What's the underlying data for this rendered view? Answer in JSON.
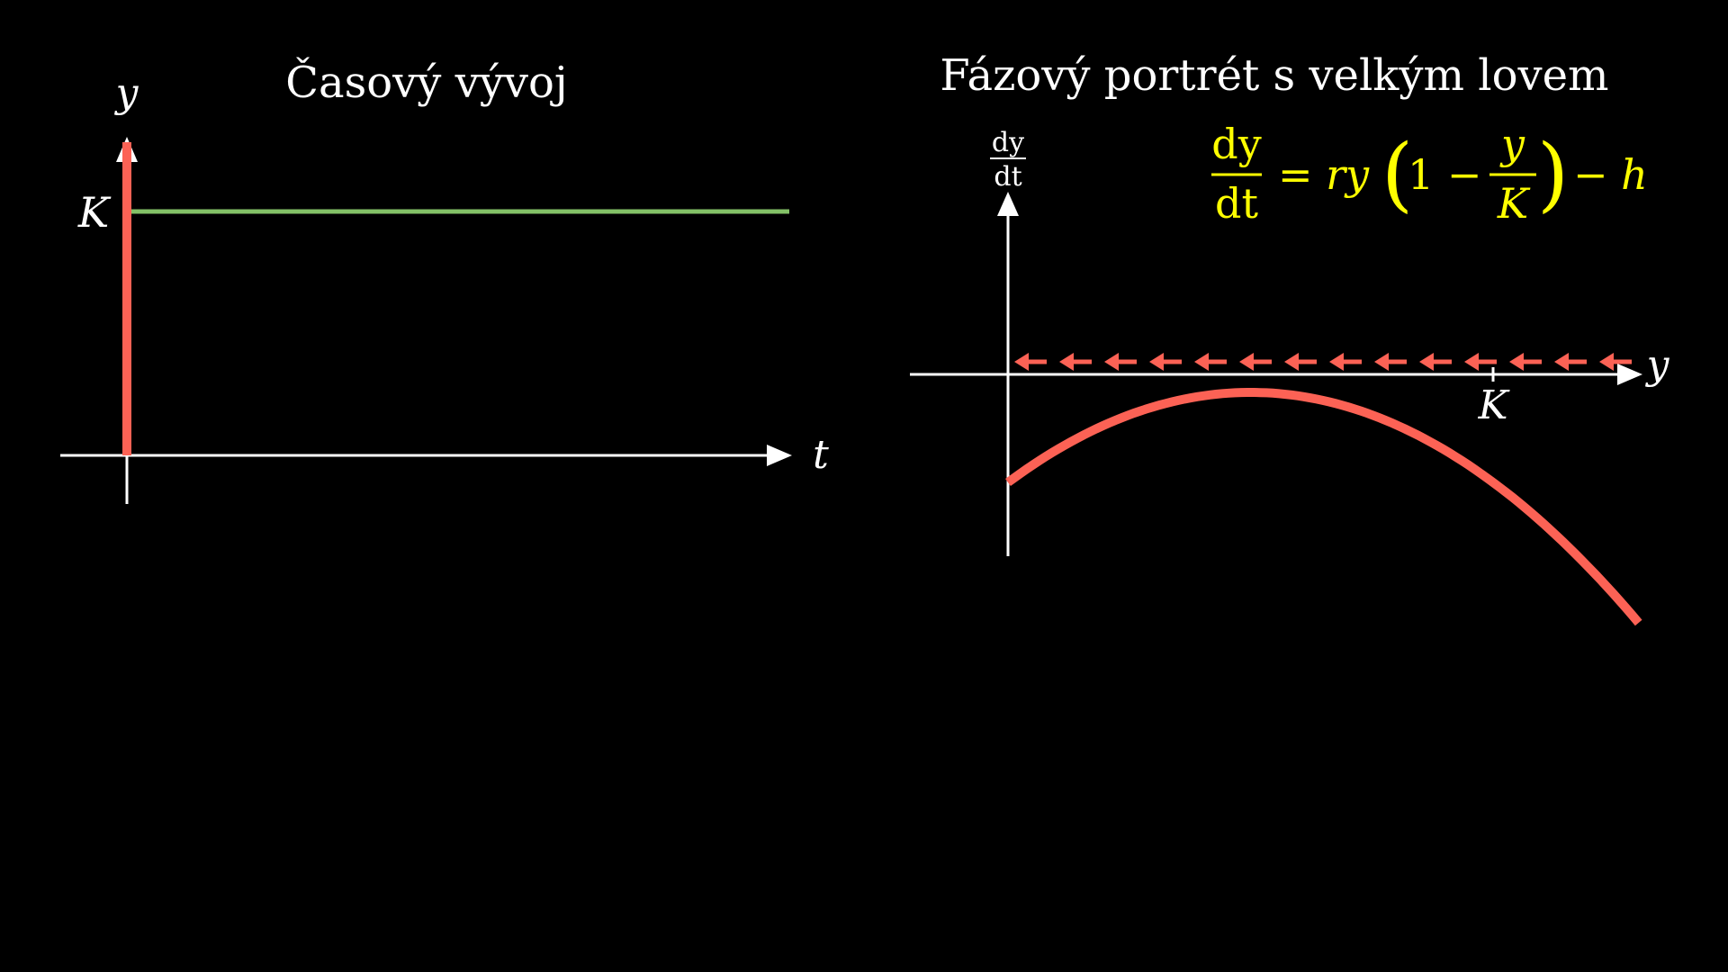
{
  "colors": {
    "background": "#000000",
    "axes": "#FFFFFF",
    "curve": "#FC6255",
    "equilibrium": "#83C167",
    "formula": "#FFFF00"
  },
  "left_panel": {
    "title": "Časový vývoj",
    "y_label": "y",
    "x_label": "t",
    "k_label": "K"
  },
  "right_panel": {
    "title": "Fázový portrét s velkým lovem",
    "y_label_num": "dy",
    "y_label_den": "dt",
    "x_label": "y",
    "k_label": "K",
    "formula": {
      "lhs_num": "dy",
      "lhs_den": "dt",
      "eq": "= ry",
      "one_minus": "1 −",
      "frac_num": "y",
      "frac_den": "K",
      "tail": "− h"
    }
  },
  "chart_data": [
    {
      "type": "line",
      "title": "Časový vývoj",
      "xlabel": "t",
      "ylabel": "y",
      "annotations": [
        "K"
      ],
      "series": [
        {
          "color": "#83C167",
          "description_values": {
            "y": "K"
          }
        },
        {
          "color": "#FC6255",
          "x": [
            0,
            0
          ],
          "y": [
            0,
            "K+"
          ]
        }
      ]
    },
    {
      "type": "line",
      "title": "Fázový portrét s velkým lovem",
      "xlabel": "y",
      "ylabel": "dy/dt",
      "equation": "dy/dt = ry(1 − y/K) − h",
      "params": {
        "r": 1,
        "K": 1,
        "h": 0.3
      },
      "xlim": [
        0,
        1.3
      ],
      "flow_arrows": {
        "count": 14,
        "direction": "left",
        "color": "#FC6255"
      }
    }
  ]
}
